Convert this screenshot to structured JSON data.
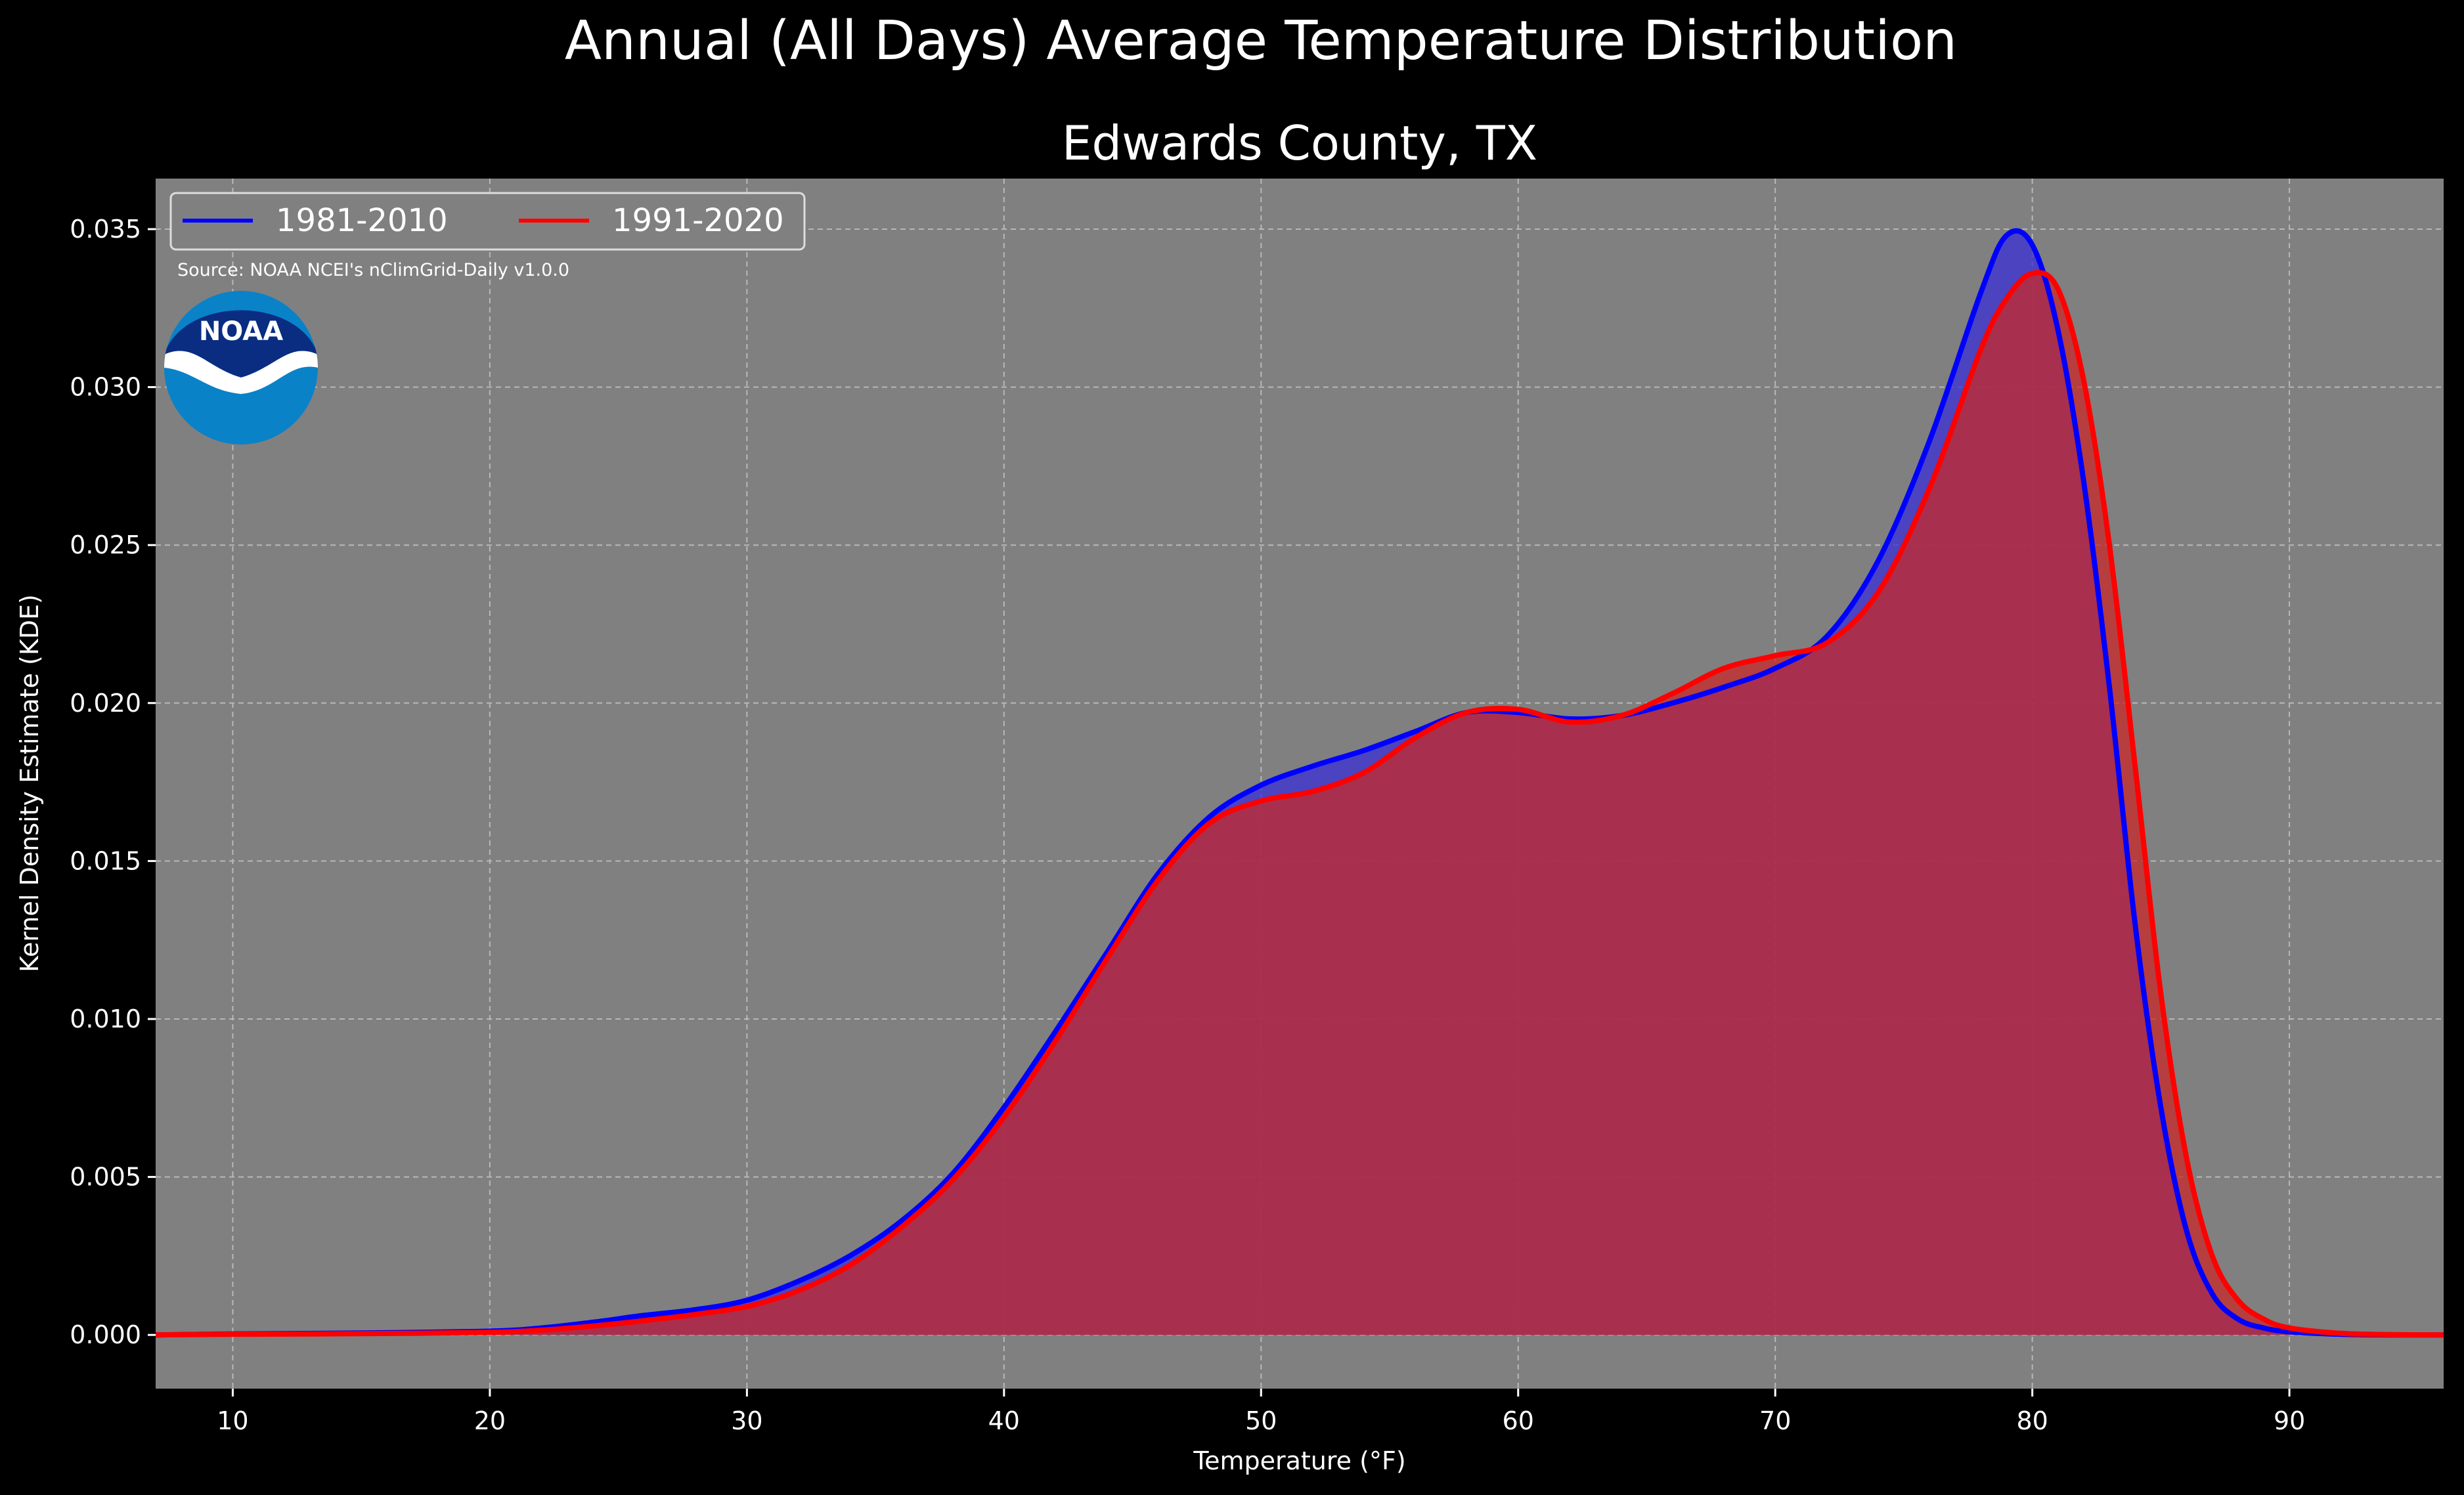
{
  "figure": {
    "suptitle": "Annual (All Days) Average Temperature Distribution",
    "source_note": "Source: NOAA NCEI's nClimGrid-Daily v1.0.0",
    "logo_text": "NOAA",
    "background_color": "#000000",
    "plot_background_color": "#808080"
  },
  "chart_data": {
    "type": "area",
    "title": "Edwards County, TX",
    "xlabel": "Temperature ($^\\circ$F)",
    "xlabel_display": "Temperature (°F)",
    "ylabel": "Kernel Density Estimate (KDE)",
    "xlim": [
      7,
      96
    ],
    "ylim": [
      -0.0017,
      0.0366
    ],
    "xticks": [
      10,
      20,
      30,
      40,
      50,
      60,
      70,
      80,
      90
    ],
    "xtick_labels": [
      "10",
      "20",
      "30",
      "40",
      "50",
      "60",
      "70",
      "80",
      "90"
    ],
    "yticks": [
      0.0,
      0.005,
      0.01,
      0.015,
      0.02,
      0.025,
      0.03,
      0.035
    ],
    "ytick_labels": [
      "0.000",
      "0.005",
      "0.010",
      "0.015",
      "0.020",
      "0.025",
      "0.030",
      "0.035"
    ],
    "grid": true,
    "legend_position": "top-left",
    "x": [
      7,
      10,
      15,
      20,
      22,
      24,
      26,
      28,
      30,
      32,
      34,
      36,
      38,
      40,
      42,
      44,
      46,
      48,
      50,
      52,
      54,
      56,
      58,
      60,
      62,
      64,
      66,
      68,
      70,
      72,
      74,
      76,
      78,
      79,
      80,
      81,
      82,
      83,
      84,
      85,
      86,
      87,
      88,
      89,
      90,
      92,
      94,
      96
    ],
    "series": [
      {
        "name": "1981-2010",
        "color": "#0000ff",
        "fill_color": "#3a2fd6",
        "values": [
          0.0,
          3e-05,
          6e-05,
          0.00012,
          0.00022,
          0.0004,
          0.00062,
          0.0008,
          0.0011,
          0.0017,
          0.0025,
          0.0036,
          0.0051,
          0.0072,
          0.0096,
          0.0121,
          0.0146,
          0.0164,
          0.0174,
          0.018,
          0.0185,
          0.0191,
          0.0197,
          0.0197,
          0.0195,
          0.0196,
          0.02,
          0.0205,
          0.0211,
          0.0221,
          0.0245,
          0.0283,
          0.033,
          0.0348,
          0.0345,
          0.0318,
          0.027,
          0.0205,
          0.013,
          0.0072,
          0.0033,
          0.0013,
          0.0005,
          0.00022,
          0.0001,
          2e-05,
          0.0,
          0.0
        ]
      },
      {
        "name": "1991-2020",
        "color": "#ff0000",
        "fill_color": "#c82828",
        "values": [
          0.0,
          2e-05,
          4e-05,
          8e-05,
          0.00015,
          0.00028,
          0.00045,
          0.00065,
          0.0009,
          0.0014,
          0.0022,
          0.0034,
          0.0049,
          0.0069,
          0.0093,
          0.0119,
          0.0144,
          0.0162,
          0.0169,
          0.0172,
          0.0178,
          0.0189,
          0.0197,
          0.0198,
          0.0194,
          0.0196,
          0.0203,
          0.0211,
          0.0215,
          0.0219,
          0.0235,
          0.0268,
          0.0312,
          0.0328,
          0.0336,
          0.0331,
          0.0302,
          0.025,
          0.018,
          0.0108,
          0.0056,
          0.0025,
          0.0011,
          0.0005,
          0.00022,
          5e-05,
          1e-05,
          0.0
        ]
      }
    ]
  }
}
